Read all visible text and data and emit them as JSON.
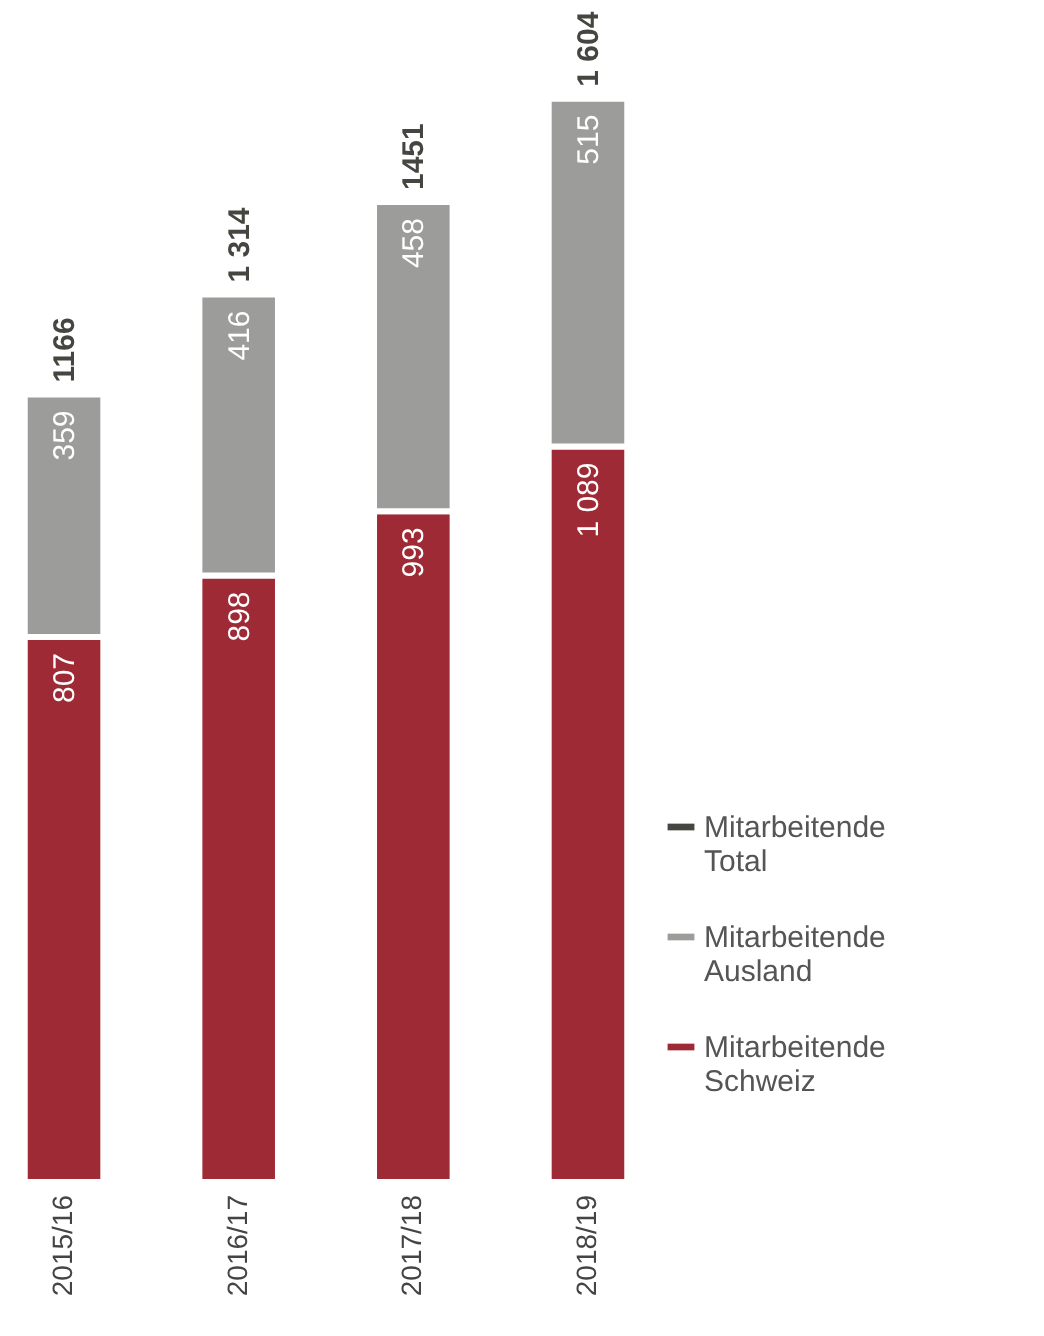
{
  "chart_data": {
    "type": "bar",
    "stacked": true,
    "data_labels": true,
    "legend": "bottom right",
    "grid": false,
    "tick_labels": "x",
    "categories": [
      "2015/16",
      "2016/17",
      "2017/18",
      "2018/19"
    ],
    "series": [
      {
        "name": "Mitarbeitende Schweiz",
        "color": "#9e2a35",
        "values": [
          807,
          898,
          993,
          1089
        ],
        "value_labels": [
          "807",
          "898",
          "993",
          "1 089"
        ]
      },
      {
        "name": "Mitarbeitende Ausland",
        "color": "#9c9c9a",
        "values": [
          359,
          416,
          458,
          515
        ],
        "value_labels": [
          "359",
          "416",
          "458",
          "515"
        ]
      },
      {
        "name": "Mitarbeitende Total",
        "type": "other",
        "color": "#45463f",
        "values": [
          null,
          null,
          null,
          null
        ]
      }
    ],
    "totals": [
      "1166",
      "1 314",
      "1451",
      "1 604"
    ]
  }
}
